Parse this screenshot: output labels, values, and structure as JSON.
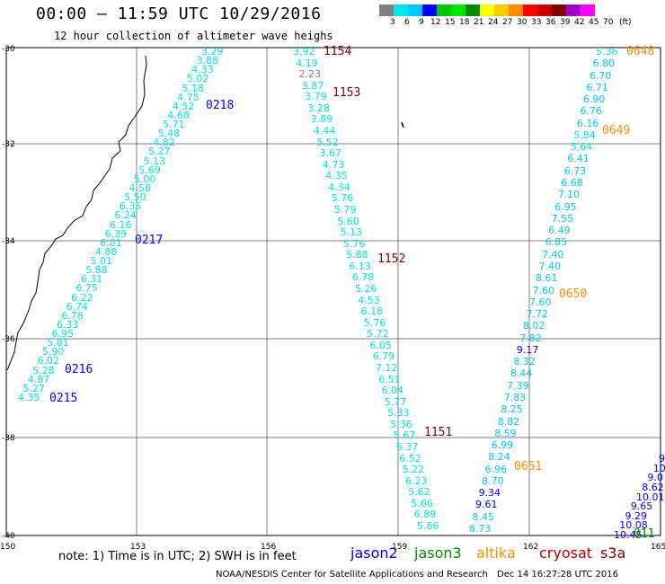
{
  "title": "00:00 — 11:59 UTC 10/29/2016",
  "subtitle": "12 hour collection of altimeter wave heighs",
  "legend": {
    "unit": "(ft)",
    "ticks": [
      "3",
      "6",
      "9",
      "12",
      "15",
      "18",
      "21",
      "24",
      "27",
      "30",
      "33",
      "36",
      "39",
      "42",
      "45",
      "70"
    ],
    "colors": [
      "#808080",
      "#00e5e5",
      "#00c8ff",
      "#0000ff",
      "#00c800",
      "#00e600",
      "#008c00",
      "#ffff00",
      "#ffc800",
      "#ff8c00",
      "#ff0000",
      "#c80000",
      "#800000",
      "#a000c8",
      "#ff00ff",
      "#ffffff"
    ]
  },
  "axes": {
    "lon_labels": [
      "150",
      "153",
      "156",
      "159",
      "162",
      "165"
    ],
    "lat_labels": [
      "-30",
      "-32",
      "-34",
      "-36",
      "-38",
      "-40"
    ]
  },
  "note": "note: 1) Time is in UTC; 2) SWH is in feet",
  "satellites": [
    {
      "name": "jason2",
      "color": "#0000ff"
    },
    {
      "name": "jason3",
      "color": "#008c00"
    },
    {
      "name": "altika",
      "color": "#ff8c00"
    },
    {
      "name": "cryosat",
      "color": "#c80000"
    },
    {
      "name": "s3a",
      "color": "#800000"
    }
  ],
  "credit": "NOAA/NESDIS Center for Satellite Applications and Research",
  "credit_date": "Dec 14 16:27:28 UTC 2016",
  "tracks": [
    {
      "id": "track1",
      "values": [
        "3.29",
        "3.88",
        "4.33",
        "5.02",
        "5.18",
        "4.75",
        "4.52",
        "4.68",
        "5.71",
        "5.48",
        "4.82",
        "5.27",
        "5.13",
        "5.69",
        "5.00",
        "4.58",
        "5.50",
        "6.35",
        "6.24",
        "6.16",
        "6.39",
        "6.01",
        "4.88",
        "5.01",
        "5.88",
        "6.31",
        "6.75",
        "6.22",
        "6.74",
        "6.78",
        "6.33",
        "6.95",
        "5.81",
        "5.90",
        "6.02",
        "5.28",
        "4.87",
        "5.27",
        "4.35"
      ],
      "colors": [
        "#00e5e5"
      ],
      "time_labels": [
        {
          "text": "0218",
          "color": "#0000ff"
        },
        {
          "text": "0217",
          "color": "#0000ff"
        },
        {
          "text": "0216",
          "color": "#0000ff"
        },
        {
          "text": "0215",
          "color": "#0000ff"
        }
      ]
    },
    {
      "id": "track2",
      "values": [
        "3.92",
        "4.19",
        "2.23",
        "3.87",
        "3.79",
        "3.28",
        "3.89",
        "4.44",
        "5.52",
        "3.67",
        "4.73",
        "4.35",
        "4.34",
        "5.76",
        "5.79",
        "5.60",
        "5.13",
        "5.76",
        "5.88",
        "6.13",
        "6.78",
        "5.26",
        "4.53",
        "6.18",
        "5.76",
        "5.72",
        "6.05",
        "6.79",
        "7.12",
        "6.51",
        "6.04",
        "5.77",
        "5.33",
        "5.36",
        "5.67",
        "6.37",
        "6.52",
        "5.22",
        "6.23",
        "5.62",
        "5.66",
        "6.89",
        "5.86"
      ],
      "time_labels": [
        {
          "text": "1154",
          "color": "#800000"
        },
        {
          "text": "1153",
          "color": "#800000"
        },
        {
          "text": "1152",
          "color": "#800000"
        },
        {
          "text": "1151",
          "color": "#800000"
        }
      ]
    },
    {
      "id": "track3",
      "values": [
        "5.36",
        "6.80",
        "6.70",
        "6.71",
        "6.90",
        "6.76",
        "6.16",
        "5.84",
        "5.64",
        "6.41",
        "6.73",
        "6.68",
        "7.10",
        "6.95",
        "7.55",
        "6.49",
        "6.85",
        "7.40",
        "7.40",
        "8.61",
        "7.60",
        "7.60",
        "7.72",
        "8.02",
        "7.82",
        "9.17",
        "8.32",
        "8.44",
        "7.39",
        "7.83",
        "8.25",
        "8.82",
        "8.59",
        "6.99",
        "8.24",
        "6.96",
        "8.70",
        "9.34",
        "9.61",
        "8.45",
        "8.73"
      ],
      "time_labels": [
        {
          "text": "0648",
          "color": "#ff8c00"
        },
        {
          "text": "0649",
          "color": "#ff8c00"
        },
        {
          "text": "0650",
          "color": "#ff8c00"
        },
        {
          "text": "0651",
          "color": "#ff8c00"
        }
      ]
    },
    {
      "id": "track4",
      "values": [
        "9",
        "10.",
        "9.0",
        "8.62",
        "10.01",
        "9.65",
        "9.29",
        "10.08",
        "10.45"
      ],
      "time_labels": [
        {
          "text": "011",
          "color": "#008c00"
        }
      ]
    }
  ]
}
